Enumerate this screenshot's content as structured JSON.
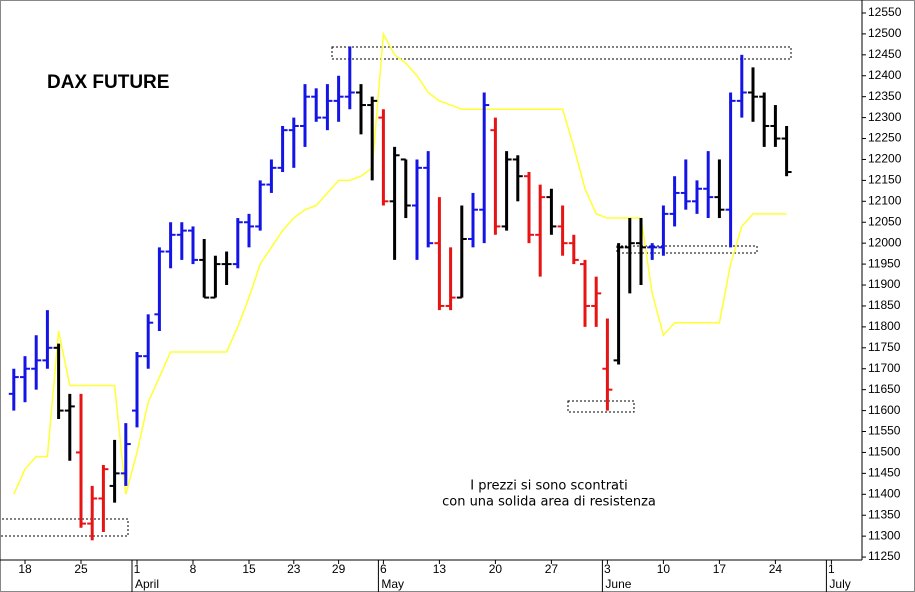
{
  "chart_data": {
    "type": "ohlc",
    "title": "DAX FUTURE",
    "annotation": [
      "I prezzi si sono scontrati",
      "con una solida area di resistenza"
    ],
    "categories": [
      null,
      "18",
      null,
      null,
      null,
      null,
      "25",
      null,
      null,
      null,
      null,
      "1",
      null,
      null,
      null,
      null,
      "8",
      null,
      null,
      null,
      null,
      "15",
      null,
      null,
      null,
      "23",
      null,
      null,
      null,
      "29",
      null,
      null,
      null,
      "6",
      null,
      null,
      null,
      null,
      "13",
      null,
      null,
      null,
      null,
      "20",
      null,
      null,
      null,
      null,
      "27",
      null,
      null,
      null,
      null,
      "3",
      null,
      null,
      null,
      null,
      "10",
      null,
      null,
      null,
      null,
      "17",
      null,
      null,
      null,
      null,
      "24",
      null,
      null,
      null,
      null,
      "1"
    ],
    "months": [
      null,
      null,
      null,
      null,
      null,
      null,
      null,
      null,
      null,
      null,
      null,
      "April",
      null,
      null,
      null,
      null,
      null,
      null,
      null,
      null,
      null,
      null,
      null,
      null,
      null,
      null,
      null,
      null,
      null,
      null,
      null,
      null,
      null,
      "May",
      null,
      null,
      null,
      null,
      null,
      null,
      null,
      null,
      null,
      null,
      null,
      null,
      null,
      null,
      null,
      null,
      null,
      null,
      null,
      "June",
      null,
      null,
      null,
      null,
      null,
      null,
      null,
      null,
      null,
      null,
      null,
      null,
      null,
      null,
      null,
      null,
      null,
      null,
      null,
      "July"
    ],
    "open": [
      11640,
      11680,
      11700,
      11720,
      11750,
      11600,
      11500,
      11330,
      11390,
      11420,
      11450,
      11600,
      11730,
      11830,
      11980,
      12020,
      12030,
      11960,
      11870,
      11950,
      11950,
      12050,
      12040,
      12140,
      12180,
      12270,
      12280,
      12350,
      12300,
      12340,
      12350,
      12360,
      12330,
      12300,
      12100,
      12200,
      12090,
      12180,
      12000,
      11850,
      11870,
      12010,
      12080,
      12270,
      12040,
      12200,
      12160,
      12020,
      12110,
      12040,
      12000,
      11950,
      11850,
      11700,
      11720,
      11990,
      12000,
      11990,
      11990,
      12070,
      12120,
      12100,
      12130,
      12110,
      12080,
      12340,
      12360,
      12350,
      12280,
      12250,
      null,
      null,
      null,
      null
    ],
    "high": [
      11700,
      11730,
      11780,
      11840,
      11760,
      11640,
      11640,
      11420,
      11470,
      11530,
      11570,
      11740,
      11830,
      11990,
      12050,
      12050,
      12040,
      12010,
      11970,
      11980,
      12060,
      12070,
      12150,
      12200,
      12280,
      12300,
      12380,
      12370,
      12380,
      12400,
      12470,
      12380,
      12350,
      12320,
      12230,
      12200,
      12200,
      12220,
      12110,
      11990,
      12090,
      12120,
      12360,
      12300,
      12220,
      12210,
      12170,
      12140,
      12130,
      12090,
      12020,
      11960,
      11920,
      11820,
      12000,
      12060,
      12060,
      12000,
      12090,
      12160,
      12200,
      12150,
      12220,
      12200,
      12360,
      12450,
      12420,
      12360,
      12330,
      12280,
      null,
      null,
      null,
      null
    ],
    "low": [
      11600,
      11620,
      11650,
      11700,
      11580,
      11480,
      11320,
      11290,
      11310,
      11380,
      11420,
      11560,
      11700,
      11790,
      11940,
      11960,
      11950,
      11870,
      11870,
      11900,
      11940,
      11990,
      12030,
      12120,
      12170,
      12180,
      12230,
      12290,
      12270,
      12290,
      12320,
      12260,
      12150,
      12090,
      11960,
      12060,
      11960,
      11990,
      11840,
      11840,
      11870,
      11990,
      12000,
      12020,
      12030,
      12100,
      12000,
      11920,
      12020,
      11970,
      11950,
      11800,
      11800,
      11600,
      11710,
      11880,
      11900,
      11960,
      11970,
      12040,
      12080,
      12070,
      12060,
      12060,
      11990,
      12300,
      12290,
      12230,
      12230,
      12160,
      null,
      null,
      null,
      null
    ],
    "close": [
      11680,
      11700,
      11720,
      11750,
      11600,
      11610,
      11330,
      11390,
      11460,
      11450,
      11520,
      11730,
      11810,
      11980,
      12020,
      12030,
      11960,
      11870,
      11950,
      11950,
      12050,
      12040,
      12140,
      12180,
      12270,
      12280,
      12350,
      12300,
      12340,
      12350,
      12360,
      12330,
      12340,
      12100,
      12210,
      12090,
      12180,
      12000,
      11850,
      11870,
      12010,
      12080,
      12330,
      12040,
      12200,
      12160,
      12020,
      12110,
      12040,
      12000,
      11960,
      11850,
      11880,
      11650,
      11990,
      12000,
      11990,
      11990,
      12070,
      12120,
      12100,
      12130,
      12110,
      12080,
      12340,
      12360,
      12350,
      12280,
      12250,
      12170,
      null,
      null,
      null,
      null
    ],
    "bar_colors": [
      "#1414e6",
      "#1414e6",
      "#1414e6",
      "#1414e6",
      "#000000",
      "#000000",
      "#e61414",
      "#e61414",
      "#e61414",
      "#000000",
      "#1414e6",
      "#1414e6",
      "#1414e6",
      "#1414e6",
      "#1414e6",
      "#1414e6",
      "#1414e6",
      "#000000",
      "#000000",
      "#000000",
      "#1414e6",
      "#1414e6",
      "#1414e6",
      "#1414e6",
      "#1414e6",
      "#1414e6",
      "#1414e6",
      "#1414e6",
      "#1414e6",
      "#1414e6",
      "#1414e6",
      "#000000",
      "#000000",
      "#e61414",
      "#000000",
      "#000000",
      "#1414e6",
      "#1414e6",
      "#e61414",
      "#e61414",
      "#000000",
      "#1414e6",
      "#1414e6",
      "#e61414",
      "#000000",
      "#000000",
      "#e61414",
      "#e61414",
      "#000000",
      "#e61414",
      "#e61414",
      "#e61414",
      "#e61414",
      "#e61414",
      "#000000",
      "#000000",
      "#000000",
      "#1414e6",
      "#1414e6",
      "#1414e6",
      "#1414e6",
      "#1414e6",
      "#1414e6",
      "#000000",
      "#1414e6",
      "#1414e6",
      "#000000",
      "#000000",
      "#000000",
      "#000000",
      null,
      null,
      null,
      null
    ],
    "line": {
      "color": "#ffff33",
      "values": [
        11400,
        11460,
        11490,
        11490,
        11790,
        11660,
        11660,
        11660,
        11660,
        11660,
        11400,
        11500,
        11620,
        11680,
        11740,
        11740,
        11740,
        11740,
        11740,
        11740,
        11800,
        11870,
        11950,
        11990,
        12030,
        12060,
        12080,
        12090,
        12120,
        12150,
        12150,
        12160,
        12180,
        12500,
        12450,
        12430,
        12400,
        12360,
        12340,
        12330,
        12320,
        12320,
        12320,
        12320,
        12320,
        12320,
        12320,
        12320,
        12320,
        12320,
        12230,
        12130,
        12070,
        12060,
        12060,
        12060,
        12060,
        11880,
        11780,
        11810,
        11810,
        11810,
        11810,
        11810,
        11950,
        12040,
        12070,
        12070,
        12070,
        12070,
        null,
        null,
        null,
        null
      ]
    },
    "ylim": [
      11243,
      12581
    ],
    "yticks": [
      11250,
      11300,
      11350,
      11400,
      11450,
      11500,
      11550,
      11600,
      11650,
      11700,
      11750,
      11800,
      11850,
      11900,
      11950,
      12000,
      12050,
      12100,
      12150,
      12200,
      12250,
      12300,
      12350,
      12400,
      12450,
      12500,
      12550
    ]
  }
}
